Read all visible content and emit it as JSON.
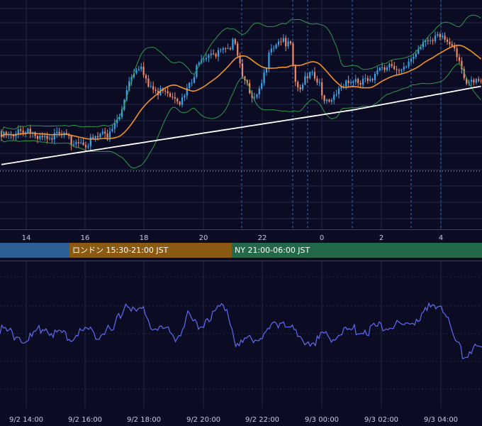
{
  "colors": {
    "background": "#0b0b24",
    "grid": "#232a45",
    "candle_up": "#3aa5e6",
    "candle_down": "#ef8a6b",
    "ma_orange": "#f0922b",
    "ma_white": "#ffffff",
    "bollinger": "#2e9a4a",
    "oscillator": "#5f6cf0",
    "session_tokyo": "#2b5f95",
    "session_london": "#8a5a12",
    "session_ny": "#24684a"
  },
  "sessions": [
    {
      "label": "",
      "color": "#2b5f95"
    },
    {
      "label": "ロンドン 15:30-21:00 JST",
      "color": "#8a5a12"
    },
    {
      "label": "NY 21:00-06:00 JST",
      "color": "#24684a"
    }
  ],
  "chart_data": [
    {
      "type": "candlestick",
      "title": "",
      "x_ticks": [
        "14",
        "16",
        "18",
        "20",
        "22",
        "0",
        "2",
        "4"
      ],
      "y_axis": "not shown",
      "grid": true,
      "series": [
        {
          "name": "",
          "kind": "candles"
        },
        {
          "name": "",
          "kind": "moving-average"
        },
        {
          "name": "",
          "kind": "moving-average"
        },
        {
          "name": "",
          "kind": "bollinger-bands"
        }
      ],
      "dotted_reference_line": true,
      "vertical_dashed_markers": 6
    },
    {
      "type": "line",
      "title": "",
      "x_ticks": [
        "9/2 14:00",
        "9/2 16:00",
        "9/2 18:00",
        "9/2 20:00",
        "9/2 22:00",
        "9/3 00:00",
        "9/3 02:00",
        "9/3 04:00"
      ],
      "y_axis": "not shown",
      "grid": true
    }
  ]
}
